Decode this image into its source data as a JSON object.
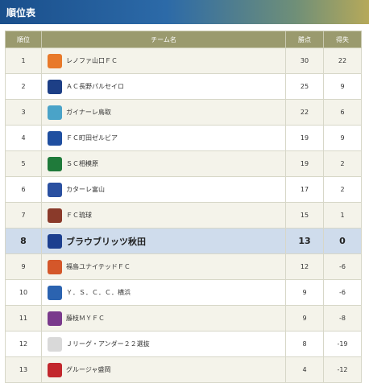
{
  "section_title": "順位表",
  "columns": {
    "rank": "順位",
    "team": "チーム名",
    "points": "勝点",
    "goal_diff": "得失"
  },
  "rows": [
    {
      "rank": "1",
      "team": "レノファ山口ＦＣ",
      "points": "30",
      "goal_diff": "22",
      "crest_icon": "renofa-crest-icon",
      "crest_color": "#e8792a"
    },
    {
      "rank": "2",
      "team": "ＡＣ長野パルセイロ",
      "points": "25",
      "goal_diff": "9",
      "crest_icon": "parceiro-crest-icon",
      "crest_color": "#1d3f86"
    },
    {
      "rank": "3",
      "team": "ガイナーレ鳥取",
      "points": "22",
      "goal_diff": "6",
      "crest_icon": "gainare-crest-icon",
      "crest_color": "#4aa3c8"
    },
    {
      "rank": "4",
      "team": "ＦＣ町田ゼルビア",
      "points": "19",
      "goal_diff": "9",
      "crest_icon": "zelvia-crest-icon",
      "crest_color": "#1f4fa0"
    },
    {
      "rank": "5",
      "team": "ＳＣ相模原",
      "points": "19",
      "goal_diff": "2",
      "crest_icon": "sagamihara-crest-icon",
      "crest_color": "#1f7a3a"
    },
    {
      "rank": "6",
      "team": "カターレ富山",
      "points": "17",
      "goal_diff": "2",
      "crest_icon": "kataller-crest-icon",
      "crest_color": "#2a50a0"
    },
    {
      "rank": "7",
      "team": "ＦＣ琉球",
      "points": "15",
      "goal_diff": "1",
      "crest_icon": "ryukyu-crest-icon",
      "crest_color": "#8a3a2a"
    },
    {
      "rank": "8",
      "team": "ブラウブリッツ秋田",
      "points": "13",
      "goal_diff": "0",
      "crest_icon": "blaublitz-crest-icon",
      "crest_color": "#1c3f8f",
      "highlight": true
    },
    {
      "rank": "9",
      "team": "福島ユナイテッドＦＣ",
      "points": "12",
      "goal_diff": "-6",
      "crest_icon": "fukushima-crest-icon",
      "crest_color": "#d4572a"
    },
    {
      "rank": "10",
      "team": "Ｙ．Ｓ．Ｃ．Ｃ．横浜",
      "points": "9",
      "goal_diff": "-6",
      "crest_icon": "yscc-crest-icon",
      "crest_color": "#2b63b0"
    },
    {
      "rank": "11",
      "team": "藤枝ＭＹＦＣ",
      "points": "9",
      "goal_diff": "-8",
      "crest_icon": "fujieda-crest-icon",
      "crest_color": "#7a3a8c"
    },
    {
      "rank": "12",
      "team": "Ｊリーグ・アンダー２２選抜",
      "points": "8",
      "goal_diff": "-19",
      "crest_icon": "j22-crest-icon",
      "crest_color": "#d9d9d9"
    },
    {
      "rank": "13",
      "team": "グルージャ盛岡",
      "points": "4",
      "goal_diff": "-12",
      "crest_icon": "grulla-crest-icon",
      "crest_color": "#c2272d"
    }
  ]
}
